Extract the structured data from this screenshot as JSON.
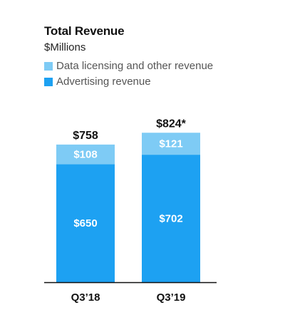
{
  "chart_data": {
    "type": "bar",
    "stacked": true,
    "title": "Total Revenue",
    "subtitle": "$Millions",
    "categories": [
      "Q3’18",
      "Q3’19"
    ],
    "series": [
      {
        "name": "Advertising revenue",
        "values": [
          650,
          702
        ],
        "labels": [
          "$650",
          "$702"
        ],
        "color": "#1da1f2"
      },
      {
        "name": "Data licensing and other revenue",
        "values": [
          108,
          121
        ],
        "labels": [
          "$108",
          "$121"
        ],
        "color": "#7ecbf5"
      }
    ],
    "totals": [
      758,
      824
    ],
    "total_labels": [
      "$758",
      "$824*"
    ],
    "legend": [
      "Data licensing and other revenue",
      "Advertising revenue"
    ],
    "legend_position": "top-left",
    "ylim": [
      0,
      824
    ],
    "grid": false
  }
}
